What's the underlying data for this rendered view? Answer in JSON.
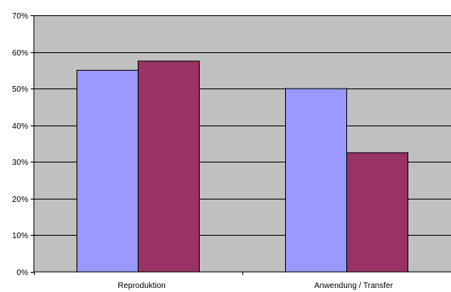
{
  "chart_data": {
    "type": "bar",
    "categories": [
      "Reproduktion",
      "Anwendung / Transfer"
    ],
    "series": [
      {
        "values": [
          55,
          50
        ],
        "color": "#9999ff"
      },
      {
        "values": [
          57.5,
          32.5
        ],
        "color": "#993366"
      }
    ],
    "ylim": [
      0,
      70
    ],
    "yticks": [
      "0%",
      "10%",
      "20%",
      "30%",
      "40%",
      "50%",
      "60%",
      "70%"
    ],
    "grid": true,
    "plot_background": "#c0c0c0",
    "legend": "none"
  }
}
